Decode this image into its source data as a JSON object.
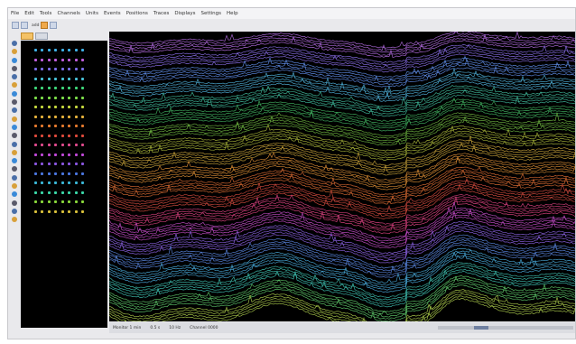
{
  "menubar": {
    "items": [
      "File",
      "Edit",
      "Tools",
      "Channels",
      "Units",
      "Events",
      "Positions",
      "Traces",
      "Displays",
      "Settings",
      "Help"
    ]
  },
  "toolbar": {
    "buttons": [
      "open-icon",
      "save-icon",
      "record-icon",
      "zoom-icon"
    ],
    "text": "add"
  },
  "tabs": [
    {
      "active": true
    },
    {
      "active": false
    }
  ],
  "left_tools": [
    "pointer-icon",
    "pencil-icon",
    "hand-icon",
    "circle-icon",
    "circle-icon",
    "circle-icon",
    "circle-icon",
    "circle-icon",
    "search-icon",
    "search-icon",
    "search-icon",
    "search-icon",
    "search-icon",
    "search-icon",
    "search-icon",
    "search-icon",
    "search-icon",
    "search-icon",
    "circle-icon",
    "circle-icon",
    "circle-icon",
    "circle-icon"
  ],
  "channel_rows": [
    {
      "color": "#3fb3e8"
    },
    {
      "color": "#c35fe0"
    },
    {
      "color": "#7a6de8"
    },
    {
      "color": "#48c2d8"
    },
    {
      "color": "#3fd87a"
    },
    {
      "color": "#7ee04a"
    },
    {
      "color": "#c6d83e"
    },
    {
      "color": "#e6b23c"
    },
    {
      "color": "#e67a2e"
    },
    {
      "color": "#e04a3c"
    },
    {
      "color": "#e04a8c"
    },
    {
      "color": "#c048d8"
    },
    {
      "color": "#8a56e0"
    },
    {
      "color": "#4a76e0"
    },
    {
      "color": "#3ab8d8"
    },
    {
      "color": "#3ad8a8"
    },
    {
      "color": "#8ad83a"
    },
    {
      "color": "#d8c03a"
    }
  ],
  "statusbar": {
    "fields": [
      "Monitor 1 min",
      "0.5 s",
      "10 Hz",
      "Channel 0000"
    ]
  },
  "scope": {
    "bands": [
      {
        "color": "#b26be0"
      },
      {
        "color": "#8a6ee8"
      },
      {
        "color": "#5f8de8"
      },
      {
        "color": "#4fb0d8"
      },
      {
        "color": "#3fb89a"
      },
      {
        "color": "#3fae5e"
      },
      {
        "color": "#6db33f"
      },
      {
        "color": "#a8b53a"
      },
      {
        "color": "#c9a33a"
      },
      {
        "color": "#d88c34"
      },
      {
        "color": "#d86a32"
      },
      {
        "color": "#d24a3e"
      },
      {
        "color": "#d8407e"
      },
      {
        "color": "#c44cc8"
      },
      {
        "color": "#8a60e0"
      },
      {
        "color": "#5a86e0"
      },
      {
        "color": "#48a8d8"
      },
      {
        "color": "#3ec0b0"
      },
      {
        "color": "#5ec86a"
      },
      {
        "color": "#a8c84a"
      }
    ]
  }
}
